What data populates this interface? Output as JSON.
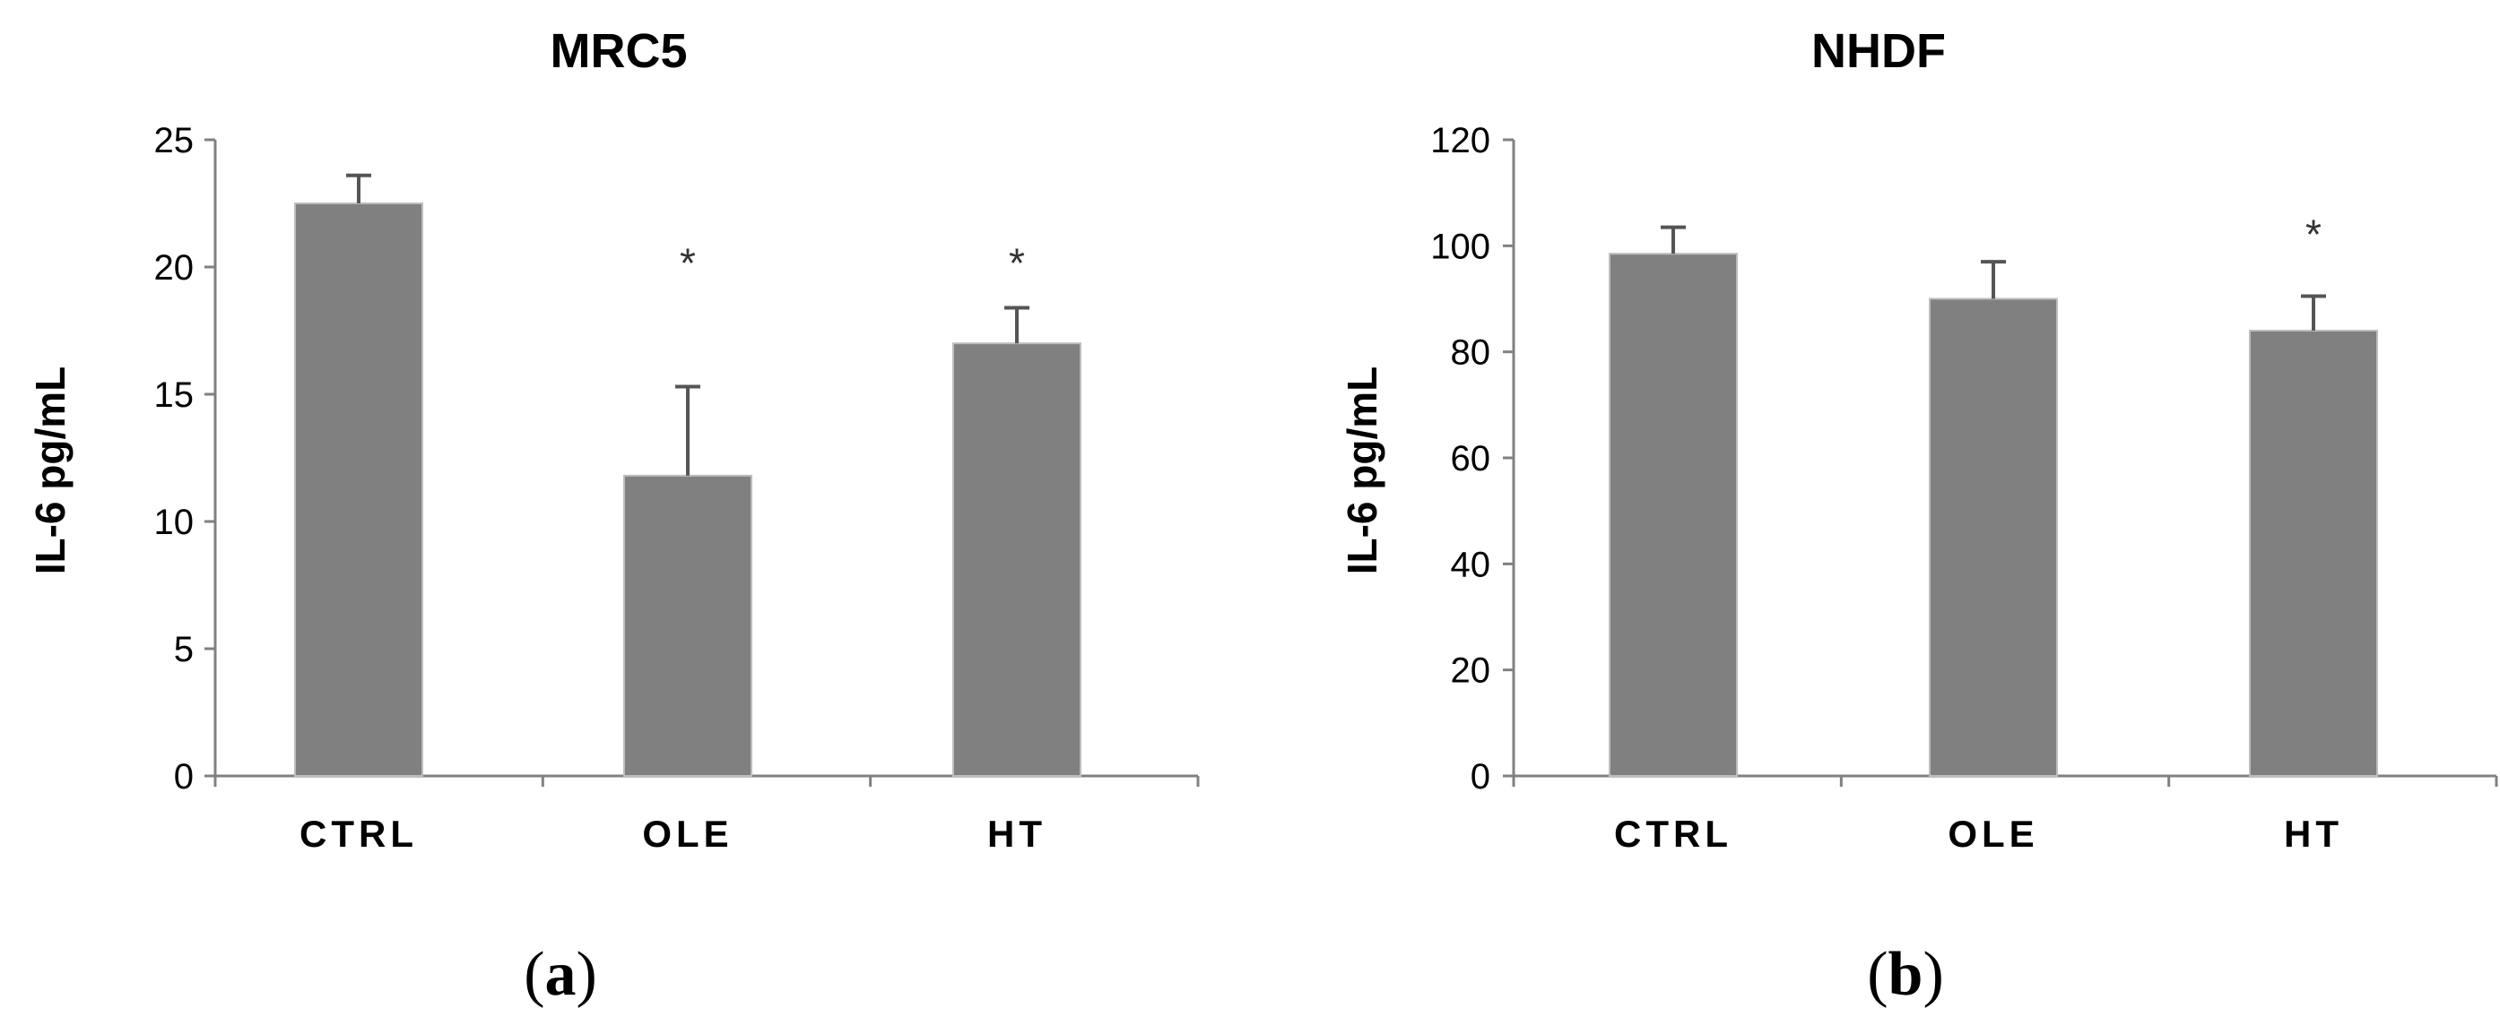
{
  "chart_data": [
    {
      "type": "bar",
      "title": "MRC5",
      "panel_label": {
        "open": "(",
        "letter": "a",
        "close": ")"
      },
      "xlabel": "",
      "ylabel": "IL-6 pg/mL",
      "categories": [
        "CTRL",
        "OLE",
        "HT"
      ],
      "values": [
        22.5,
        11.8,
        17.0
      ],
      "errors": [
        1.1,
        3.5,
        1.4
      ],
      "significance": [
        "",
        "*",
        "*"
      ],
      "ylim": [
        0,
        25
      ],
      "yticks": [
        0,
        5,
        10,
        15,
        20,
        25
      ],
      "bar_color": "#808080",
      "grid": false
    },
    {
      "type": "bar",
      "title": "NHDF",
      "panel_label": {
        "open": "(",
        "letter": "b",
        "close": ")"
      },
      "xlabel": "",
      "ylabel": "IL-6 pg/mL",
      "categories": [
        "CTRL",
        "OLE",
        "HT"
      ],
      "values": [
        98.5,
        90.0,
        84.0
      ],
      "errors": [
        5.0,
        7.0,
        6.5
      ],
      "significance": [
        "",
        "",
        "*"
      ],
      "ylim": [
        0,
        120
      ],
      "yticks": [
        0,
        20,
        40,
        60,
        80,
        100,
        120
      ],
      "bar_color": "#808080",
      "grid": false
    }
  ]
}
